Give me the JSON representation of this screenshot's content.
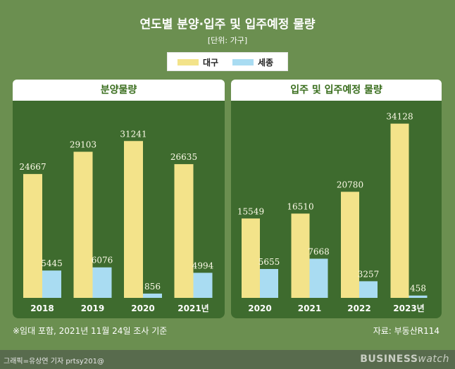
{
  "title": "연도별 분양·입주 및 입주예정 물량",
  "unit_note": "[단위: 가구]",
  "legend": [
    {
      "label": "대구",
      "color": "#f3e38a"
    },
    {
      "label": "세종",
      "color": "#a9dcf2"
    }
  ],
  "footnote": "※임대 포함, 2021년 11월 24일 조사 기준",
  "source": "자료: 부동산R114",
  "credit": "그래픽=유상연 기자 prtsy201@",
  "brand": {
    "part1": "BUSINESS",
    "part2": "watch"
  },
  "colors": {
    "background": "#6b8f50",
    "panel": "#3e6b2e",
    "daegu": "#f3e38a",
    "sejong": "#a9dcf2"
  },
  "chart_data": [
    {
      "type": "bar",
      "title": "분양물량",
      "categories": [
        "2018",
        "2019",
        "2020",
        "2021년"
      ],
      "series": [
        {
          "name": "대구",
          "values": [
            24667,
            29103,
            31241,
            26635
          ]
        },
        {
          "name": "세종",
          "values": [
            5445,
            6076,
            856,
            4994
          ]
        }
      ]
    },
    {
      "type": "bar",
      "title": "입주 및 입주예정 물량",
      "categories": [
        "2020",
        "2021",
        "2022",
        "2023년"
      ],
      "series": [
        {
          "name": "대구",
          "values": [
            15549,
            16510,
            20780,
            34128
          ]
        },
        {
          "name": "세종",
          "values": [
            5655,
            7668,
            3257,
            458
          ]
        }
      ]
    }
  ]
}
